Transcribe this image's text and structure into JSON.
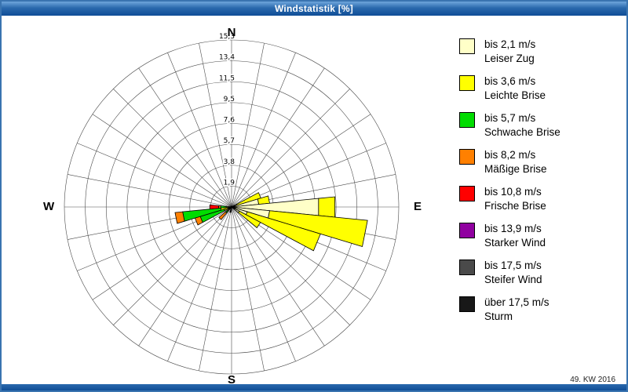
{
  "window": {
    "title": "Windstatistik [%]",
    "footer": "49. KW 2016"
  },
  "compass": {
    "n": "N",
    "e": "E",
    "s": "S",
    "w": "W"
  },
  "chart_data": {
    "type": "wind_rose",
    "title": "Windstatistik [%]",
    "units": "percent",
    "legend_position": "right",
    "sectors": 32,
    "sector_width_deg": 11.25,
    "ring_max": 15.3,
    "ring_values": [
      1.9,
      3.8,
      5.7,
      7.6,
      9.5,
      11.5,
      13.4,
      15.3
    ],
    "ring_labels": [
      "1,9",
      "3,8",
      "5,7",
      "7,6",
      "9,5",
      "11,5",
      "13,4",
      "15,3"
    ],
    "grid_on": true,
    "classes": [
      {
        "label_speed": "bis 2,1 m/s",
        "label_name": "Leiser Zug",
        "color": "#ffffc8"
      },
      {
        "label_speed": "bis 3,6 m/s",
        "label_name": "Leichte Brise",
        "color": "#ffff00"
      },
      {
        "label_speed": "bis 5,7 m/s",
        "label_name": "Schwache Brise",
        "color": "#00dc00"
      },
      {
        "label_speed": "bis 8,2 m/s",
        "label_name": "Mäßige Brise",
        "color": "#ff8000"
      },
      {
        "label_speed": "bis 10,8 m/s",
        "label_name": "Frische Brise",
        "color": "#ff0000"
      },
      {
        "label_speed": "bis 13,9 m/s",
        "label_name": "Starker Wind",
        "color": "#9000a0"
      },
      {
        "label_speed": "bis 17,5 m/s",
        "label_name": "Steifer Wind",
        "color": "#4a4a4a"
      },
      {
        "label_speed": "über 17,5 m/s",
        "label_name": "Sturm",
        "color": "#181818"
      }
    ],
    "petals": [
      {
        "dir": 67.5,
        "values": [
          0.5,
          2.3,
          0,
          0,
          0,
          0,
          0,
          0
        ]
      },
      {
        "dir": 78.75,
        "values": [
          2.5,
          1.0,
          0,
          0,
          0,
          0,
          0,
          0
        ]
      },
      {
        "dir": 90.0,
        "values": [
          8.0,
          1.5,
          0,
          0,
          0,
          0,
          0,
          0
        ]
      },
      {
        "dir": 101.25,
        "values": [
          3.5,
          9.0,
          0,
          0,
          0,
          0,
          0,
          0
        ]
      },
      {
        "dir": 112.5,
        "values": [
          1.5,
          7.0,
          0,
          0,
          0,
          0,
          0,
          0
        ]
      },
      {
        "dir": 123.75,
        "values": [
          0.8,
          2.2,
          0,
          0,
          0,
          0,
          0,
          0
        ]
      },
      {
        "dir": 191.25,
        "values": [
          0,
          0,
          0,
          0,
          0,
          0,
          0,
          0.5
        ]
      },
      {
        "dir": 225.0,
        "values": [
          0.2,
          0.3,
          0.2,
          0.8,
          0,
          0,
          0,
          0
        ]
      },
      {
        "dir": 247.5,
        "values": [
          0.2,
          0.5,
          2.3,
          0.5,
          0,
          0,
          0,
          0
        ]
      },
      {
        "dir": 258.75,
        "values": [
          0.3,
          0.7,
          3.5,
          0.7,
          0,
          0,
          0,
          0
        ]
      },
      {
        "dir": 270.0,
        "values": [
          0.2,
          0.3,
          0.5,
          0.2,
          0.8,
          0,
          0,
          0
        ]
      }
    ]
  }
}
